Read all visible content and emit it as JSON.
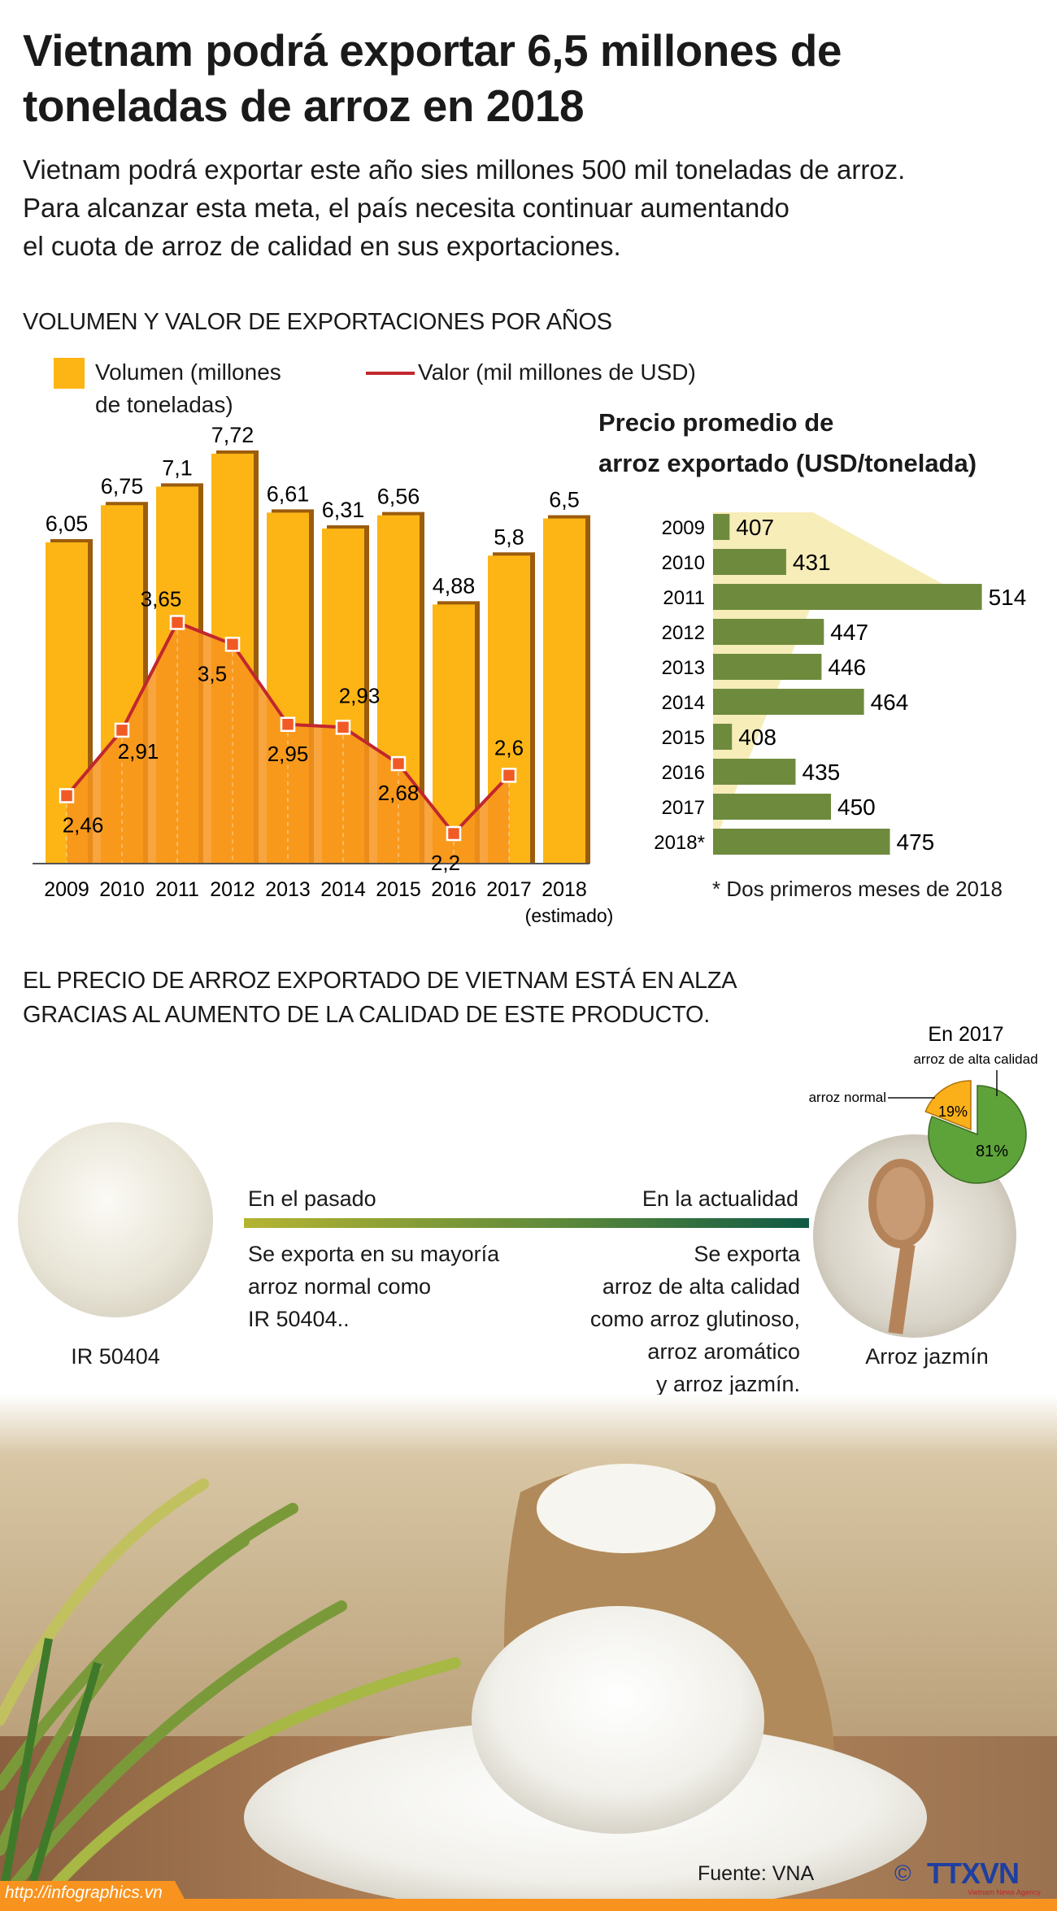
{
  "title": "Vietnam podrá exportar 6,5 millones de toneladas de arroz en 2018",
  "intro": [
    "Vietnam podrá exportar este año sies millones 500 mil toneladas de arroz.",
    "Para alcanzar esta meta, el país necesita continuar aumentando",
    "el cuota de arroz de calidad en sus exportaciones."
  ],
  "chart_data": [
    {
      "type": "bar+line",
      "title": "VOLUMEN Y VALOR DE EXPORTACIONES POR AÑOS",
      "categories": [
        "2009",
        "2010",
        "2011",
        "2012",
        "2013",
        "2014",
        "2015",
        "2016",
        "2017",
        "2018"
      ],
      "category_note": "(estimado)",
      "series": [
        {
          "name": "Volumen (millones de toneladas)",
          "type": "bar",
          "color": "#FDB515",
          "values": [
            6.05,
            6.75,
            7.1,
            7.72,
            6.61,
            6.31,
            6.56,
            4.88,
            5.8,
            6.5
          ],
          "labels": [
            "6,05",
            "6,75",
            "7,1",
            "7,72",
            "6,61",
            "6,31",
            "6,56",
            "4,88",
            "5,8",
            "6,5"
          ]
        },
        {
          "name": "Valor (mil millones de USD)",
          "type": "line",
          "color": "#C1272D",
          "values": [
            2.46,
            2.91,
            3.65,
            3.5,
            2.95,
            2.93,
            2.68,
            2.2,
            2.6,
            null
          ],
          "labels": [
            "2,46",
            "2,91",
            "3,65",
            "3,5",
            "2,95",
            "2,93",
            "2,68",
            "2,2",
            "2,6",
            ""
          ]
        }
      ]
    },
    {
      "type": "bar",
      "orientation": "horizontal",
      "title": "Precio promedio de arroz exportado (USD/tonelada)",
      "categories": [
        "2009",
        "2010",
        "2011",
        "2012",
        "2013",
        "2014",
        "2015",
        "2016",
        "2017",
        "2018*"
      ],
      "values": [
        407,
        431,
        514,
        447,
        446,
        464,
        408,
        435,
        450,
        475
      ],
      "color": "#6E8B3D",
      "note": "* Dos primeros meses de 2018"
    },
    {
      "type": "pie",
      "title": "En 2017",
      "slices": [
        {
          "name": "arroz de alta calidad",
          "value": 81,
          "label": "81%",
          "color": "#5EA33A"
        },
        {
          "name": "arroz normal",
          "value": 19,
          "label": "19%",
          "color": "#FBB01A"
        }
      ]
    }
  ],
  "legend": {
    "volume_1": "Volumen (millones",
    "volume_2": "de toneladas)",
    "value": "Valor (mil millones de USD)"
  },
  "price_title": [
    "Precio promedio de",
    "arroz exportado (USD/tonelada)"
  ],
  "section2": [
    "EL PRECIO DE ARROZ EXPORTADO DE VIETNAM ESTÁ EN ALZA",
    "GRACIAS AL AUMENTO DE LA CALIDAD DE ESTE PRODUCTO."
  ],
  "past": {
    "label": "En el pasado",
    "text": [
      "Se exporta en su mayoría",
      "arroz normal como",
      "IR 50404.."
    ],
    "caption": "IR 50404"
  },
  "now": {
    "label": "En la actualidad",
    "text": [
      "Se exporta",
      "arroz de alta calidad",
      "como arroz glutinoso,",
      "arroz aromático",
      "y arroz jazmín."
    ],
    "caption": "Arroz jazmín"
  },
  "footer": {
    "source": "Fuente: VNA",
    "url": "http://infographics.vn",
    "logo": "TTXVN",
    "logo_sub": "Vietnam News Agency",
    "copyright": "©"
  }
}
